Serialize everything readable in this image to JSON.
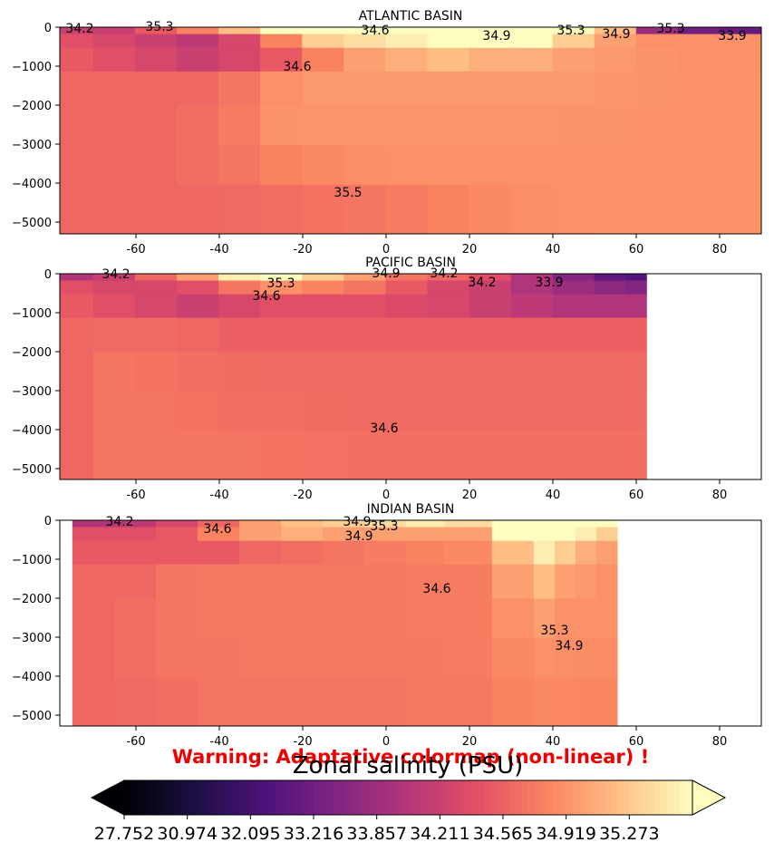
{
  "chart_data": [
    {
      "type": "heatmap",
      "title": "ATLANTIC BASIN",
      "xlim": [
        -78,
        90
      ],
      "ylim": [
        -5250,
        0
      ],
      "xticks": [
        "-60",
        "-40",
        "-20",
        "0",
        "20",
        "40",
        "60",
        "80"
      ],
      "yticks": [
        "0",
        "−1000",
        "−2000",
        "−3000",
        "−4000",
        "−5000"
      ],
      "x": [
        -75,
        -65,
        -55,
        -45,
        -35,
        -25,
        -15,
        -5,
        5,
        15,
        25,
        35,
        45,
        55,
        65,
        75,
        85
      ],
      "depths": [
        -50,
        -300,
        -750,
        -1500,
        -2500,
        -3500,
        -4500
      ],
      "salinity": [
        [
          34.2,
          34.2,
          34.5,
          34.8,
          35.2,
          35.8,
          36.0,
          36.0,
          36.1,
          36.3,
          36.5,
          36.6,
          36.3,
          35.2,
          33.8,
          33.2,
          33.0
        ],
        [
          34.4,
          34.3,
          34.2,
          34.1,
          34.3,
          34.8,
          35.3,
          35.4,
          35.5,
          35.6,
          35.7,
          35.6,
          35.3,
          35.0,
          34.9,
          34.9,
          34.9
        ],
        [
          34.5,
          34.4,
          34.3,
          34.2,
          34.3,
          34.5,
          34.8,
          35.0,
          35.1,
          35.2,
          35.1,
          35.1,
          35.0,
          34.95,
          34.92,
          34.9,
          34.9
        ],
        [
          34.6,
          34.6,
          34.6,
          34.6,
          34.7,
          34.9,
          34.95,
          34.95,
          34.95,
          34.95,
          34.95,
          34.95,
          34.95,
          34.93,
          34.92,
          34.91,
          34.91
        ],
        [
          34.6,
          34.6,
          34.6,
          34.65,
          34.75,
          34.92,
          34.93,
          34.93,
          34.93,
          34.93,
          34.93,
          34.93,
          34.92,
          34.92,
          34.91,
          34.91,
          34.91
        ],
        [
          34.6,
          34.6,
          34.6,
          34.65,
          34.7,
          34.8,
          34.85,
          34.88,
          34.9,
          34.9,
          34.9,
          34.9,
          34.9,
          34.91,
          34.91,
          34.91,
          34.91
        ],
        [
          34.6,
          34.6,
          34.6,
          34.6,
          34.62,
          34.65,
          34.68,
          34.7,
          34.75,
          34.8,
          34.85,
          34.88,
          34.9,
          34.91,
          34.91,
          34.91,
          34.91
        ]
      ],
      "contour_labels": [
        "34.2",
        "35.3",
        "34.6",
        "34.6",
        "34.9",
        "34.9",
        "33.9",
        "35.3",
        "35.3",
        "35.5"
      ]
    },
    {
      "type": "heatmap",
      "title": "PACIFIC BASIN",
      "xlim": [
        -78,
        90
      ],
      "ylim": [
        -5250,
        0
      ],
      "xticks": [
        "-60",
        "-40",
        "-20",
        "0",
        "20",
        "40",
        "60",
        "80"
      ],
      "yticks": [
        "0",
        "−1000",
        "−2000",
        "−3000",
        "−4000",
        "−5000"
      ],
      "x": [
        -75,
        -65,
        -55,
        -45,
        -35,
        -25,
        -15,
        -5,
        5,
        15,
        25,
        35,
        45,
        55,
        60
      ],
      "depths": [
        -50,
        -300,
        -750,
        -1500,
        -2500,
        -3500,
        -4500
      ],
      "salinity": [
        [
          34.0,
          34.2,
          34.6,
          35.0,
          35.5,
          35.6,
          35.3,
          35.0,
          34.7,
          34.6,
          34.4,
          34.0,
          33.5,
          32.8,
          32.5
        ],
        [
          34.4,
          34.3,
          34.3,
          34.4,
          34.7,
          34.9,
          34.8,
          34.7,
          34.5,
          34.3,
          34.2,
          34.0,
          33.8,
          33.6,
          33.5
        ],
        [
          34.5,
          34.4,
          34.3,
          34.2,
          34.3,
          34.4,
          34.4,
          34.4,
          34.35,
          34.3,
          34.2,
          34.1,
          34.0,
          34.0,
          34.0
        ],
        [
          34.6,
          34.62,
          34.62,
          34.6,
          34.55,
          34.55,
          34.55,
          34.55,
          34.55,
          34.55,
          34.55,
          34.55,
          34.55,
          34.55,
          34.55
        ],
        [
          34.6,
          34.7,
          34.68,
          34.66,
          34.64,
          34.63,
          34.62,
          34.62,
          34.62,
          34.62,
          34.62,
          34.62,
          34.62,
          34.62,
          34.62
        ],
        [
          34.6,
          34.7,
          34.69,
          34.68,
          34.66,
          34.65,
          34.64,
          34.63,
          34.63,
          34.63,
          34.63,
          34.63,
          34.63,
          34.63,
          34.63
        ],
        [
          34.6,
          34.7,
          34.7,
          34.7,
          34.69,
          34.68,
          34.67,
          34.66,
          34.65,
          34.65,
          34.65,
          34.65,
          34.65,
          34.65,
          34.65
        ]
      ],
      "contour_labels": [
        "34.2",
        "35.3",
        "34.6",
        "34.9",
        "34.2",
        "34.2",
        "33.9",
        "34.6"
      ]
    },
    {
      "type": "heatmap",
      "title": "INDIAN BASIN",
      "xlim": [
        -78,
        90
      ],
      "ylim": [
        -5250,
        0
      ],
      "xticks": [
        "-60",
        "-40",
        "-20",
        "0",
        "20",
        "40",
        "60",
        "80"
      ],
      "yticks": [
        "0",
        "−1000",
        "−2000",
        "−3000",
        "−4000",
        "−5000"
      ],
      "x": [
        -70,
        -60,
        -50,
        -40,
        -30,
        -20,
        -10,
        0,
        10,
        18,
        33,
        38,
        43,
        48,
        53
      ],
      "depths": [
        -50,
        -300,
        -750,
        -1500,
        -2500,
        -3500,
        -4500
      ],
      "salinity": [
        [
          34.0,
          34.1,
          34.3,
          34.6,
          35.0,
          35.2,
          35.3,
          35.4,
          35.5,
          35.4,
          36.5,
          36.8,
          36.8,
          36.5,
          36.2
        ],
        [
          34.4,
          34.4,
          34.5,
          34.8,
          35.0,
          35.1,
          35.0,
          35.0,
          35.0,
          35.0,
          35.8,
          36.0,
          35.8,
          35.5,
          35.3
        ],
        [
          34.5,
          34.5,
          34.5,
          34.5,
          34.6,
          34.65,
          34.7,
          34.75,
          34.8,
          34.85,
          35.2,
          35.5,
          35.3,
          35.1,
          35.0
        ],
        [
          34.6,
          34.6,
          34.7,
          34.72,
          34.72,
          34.72,
          34.73,
          34.73,
          34.75,
          34.76,
          35.0,
          35.2,
          35.0,
          34.95,
          34.9
        ],
        [
          34.6,
          34.65,
          34.7,
          34.72,
          34.72,
          34.72,
          34.73,
          34.73,
          34.74,
          34.75,
          34.9,
          35.0,
          34.9,
          34.9,
          34.9
        ],
        [
          34.6,
          34.65,
          34.7,
          34.71,
          34.72,
          34.72,
          34.72,
          34.72,
          34.73,
          34.74,
          34.85,
          34.9,
          34.88,
          34.87,
          34.86
        ],
        [
          34.6,
          34.62,
          34.66,
          34.69,
          34.7,
          34.7,
          34.7,
          34.7,
          34.72,
          34.73,
          34.8,
          34.85,
          34.84,
          34.83,
          34.83
        ]
      ],
      "contour_labels": [
        "34.2",
        "34.6",
        "34.9",
        "35.3",
        "34.9",
        "34.6",
        "35.3",
        "34.9"
      ]
    }
  ],
  "warning": "Warning: Adaptative colormap (non-linear) !",
  "colorbar": {
    "label": "Zonal salinity (PSU)",
    "colormap": "magma",
    "ticks": [
      "27.752",
      "30.974",
      "32.095",
      "33.216",
      "33.857",
      "34.211",
      "34.565",
      "34.919",
      "35.273"
    ],
    "boundaries": [
      27.752,
      30.974,
      32.095,
      33.216,
      33.857,
      34.211,
      34.565,
      34.919,
      35.273,
      35.6
    ],
    "extend": "both"
  }
}
